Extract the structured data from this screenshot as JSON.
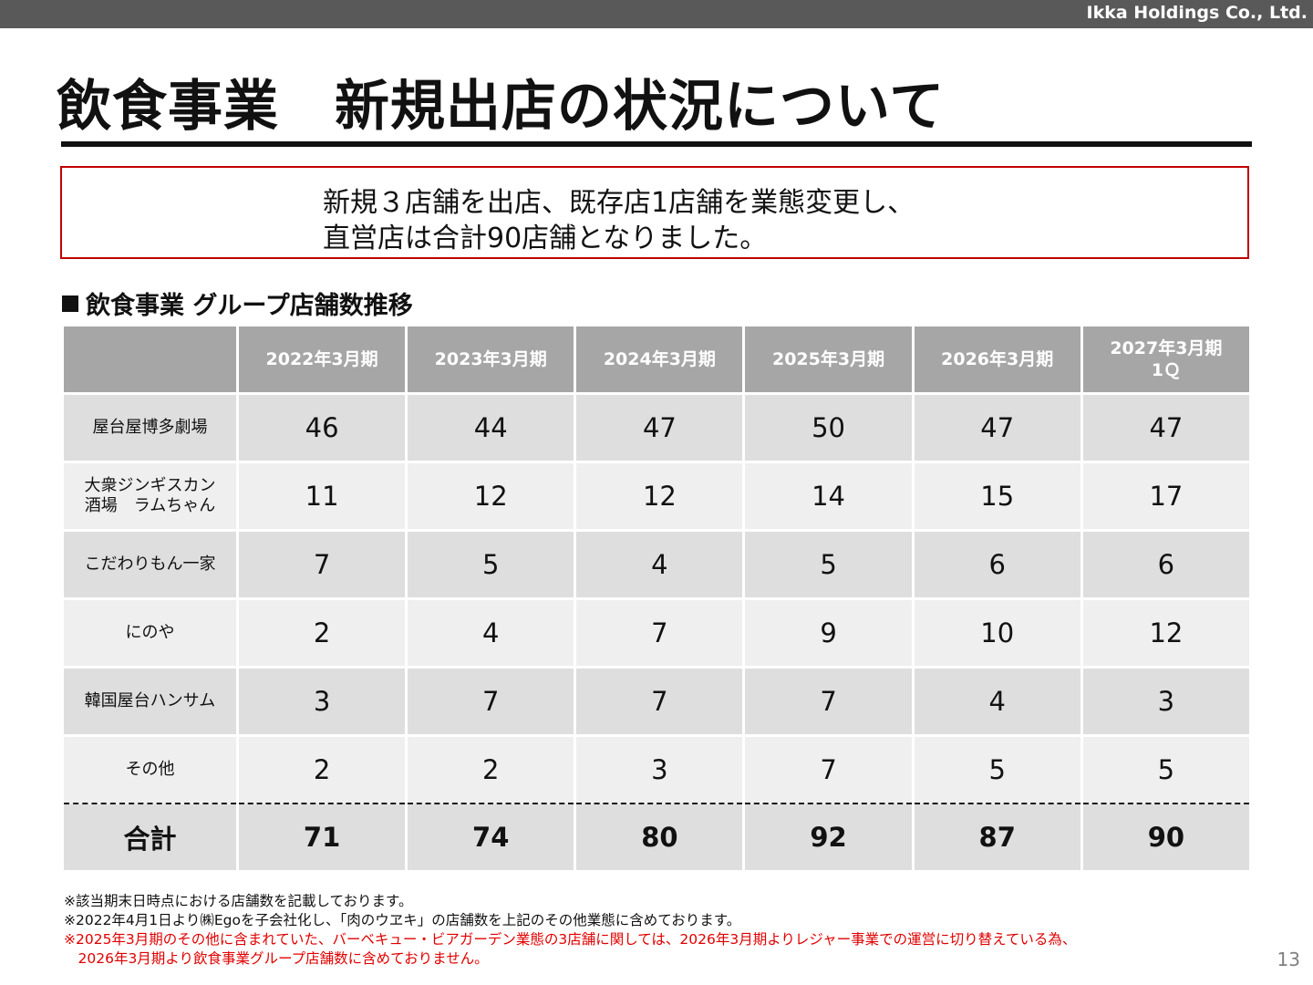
{
  "header": {
    "company": "Ikka Holdings Co., Ltd."
  },
  "title": "飲食事業　新規出店の状況について",
  "summary": {
    "line1": "新規３店舗を出店、既存店1店舗を業態変更し、",
    "line2": "直営店は合計90店舗となりました。"
  },
  "section_heading": "飲食事業 グループ店舗数推移",
  "table": {
    "columns": [
      "2022年3月期",
      "2023年3月期",
      "2024年3月期",
      "2025年3月期",
      "2026年3月期",
      "2027年3月期",
      "1Ｑ"
    ],
    "rows": [
      {
        "label": "屋台屋博多劇場",
        "label2": "",
        "values": [
          "46",
          "44",
          "47",
          "50",
          "47",
          "47"
        ]
      },
      {
        "label": "大衆ジンギスカン",
        "label2": "酒場　ラムちゃん",
        "values": [
          "11",
          "12",
          "12",
          "14",
          "15",
          "17"
        ]
      },
      {
        "label": "こだわりもん一家",
        "label2": "",
        "values": [
          "7",
          "5",
          "4",
          "5",
          "6",
          "6"
        ]
      },
      {
        "label": "にのや",
        "label2": "",
        "values": [
          "2",
          "4",
          "7",
          "9",
          "10",
          "12"
        ]
      },
      {
        "label": "韓国屋台ハンサム",
        "label2": "",
        "values": [
          "3",
          "7",
          "7",
          "7",
          "4",
          "3"
        ]
      },
      {
        "label": "その他",
        "label2": "",
        "values": [
          "2",
          "2",
          "3",
          "7",
          "5",
          "5"
        ]
      }
    ],
    "total": {
      "label": "合計",
      "values": [
        "71",
        "74",
        "80",
        "92",
        "87",
        "90"
      ]
    }
  },
  "notes": [
    "※該当期末日時点における店舗数を記載しております。",
    "※2022年4月1日より㈱Egoを子会社化し、「肉のウヱキ」の店舗数を上記のその他業態に含めております。",
    "※2025年3月期のその他に含まれていた、バーベキュー・ビアガーデン業態の3店舗に関しては、2026年3月期よりレジャー事業での運営に切り替えている為、",
    "　2026年3月期より飲食事業グループ店舗数に含めておりません。"
  ],
  "page_number": "13",
  "colors": {
    "header_bar": "#595959",
    "box_border": "#c00000",
    "note_red": "#e00000",
    "table_header": "#a6a6a6"
  }
}
